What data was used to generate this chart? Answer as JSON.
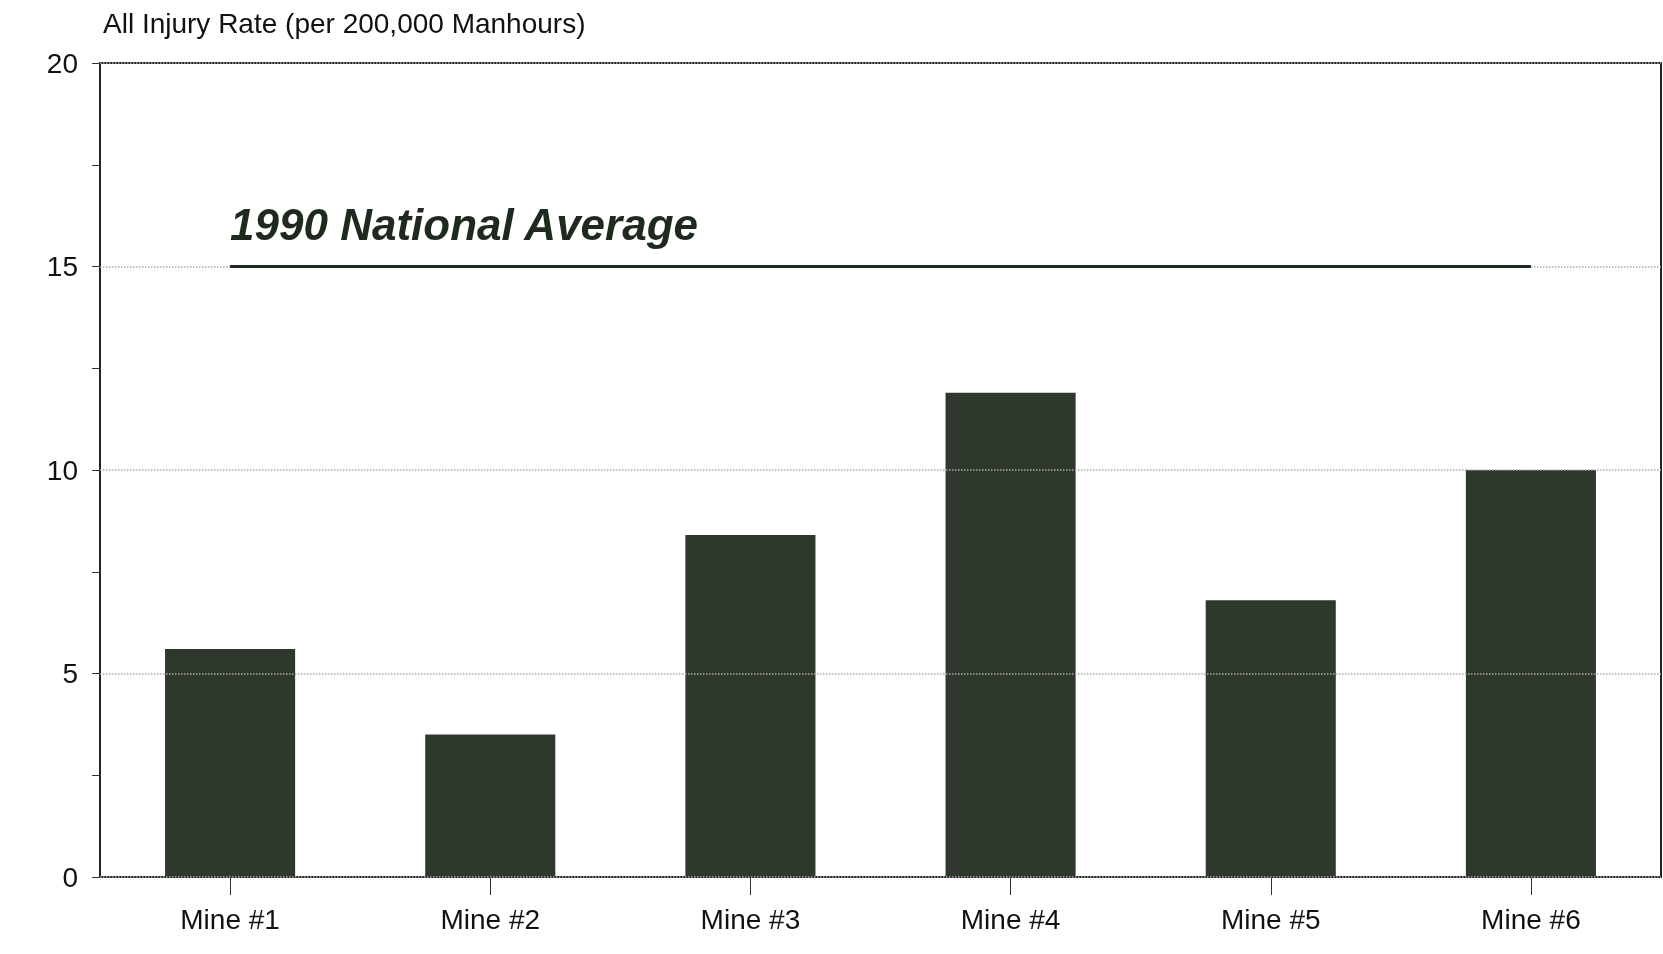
{
  "chart_data": {
    "type": "bar",
    "ylabel": "All Injury Rate (per 200,000 Manhours)",
    "categories": [
      "Mine #1",
      "Mine #2",
      "Mine #3",
      "Mine #4",
      "Mine #5",
      "Mine #6"
    ],
    "values": [
      5.6,
      3.5,
      8.4,
      11.9,
      6.8,
      10.0
    ],
    "color": "#2f382c",
    "ylim": [
      0,
      20
    ],
    "yticks": [
      0,
      {
        "value": 2.5,
        "label": null
      },
      5,
      {
        "value": 7.5,
        "label": null
      },
      10,
      {
        "value": 12.5,
        "label": null
      },
      15,
      {
        "value": 17.5,
        "label": null
      },
      20
    ],
    "grid": "y",
    "ref_lines": [
      {
        "axis": "y",
        "value": 15,
        "label": "1990 National Average",
        "color": "#1f2a1f"
      }
    ]
  }
}
